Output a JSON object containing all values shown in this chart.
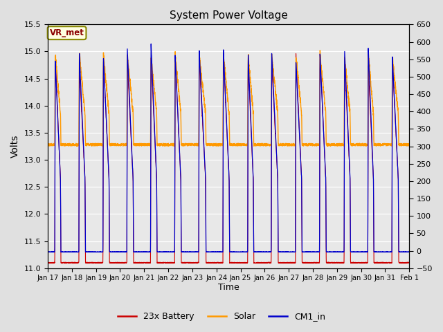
{
  "title": "System Power Voltage",
  "xlabel": "Time",
  "ylabel_left": "Volts",
  "ylim_left": [
    11.0,
    15.5
  ],
  "ylim_right": [
    -50,
    650
  ],
  "yticks_left": [
    11.0,
    11.5,
    12.0,
    12.5,
    13.0,
    13.5,
    14.0,
    14.5,
    15.0,
    15.5
  ],
  "yticks_right": [
    -50,
    0,
    50,
    100,
    150,
    200,
    250,
    300,
    350,
    400,
    450,
    500,
    550,
    600,
    650
  ],
  "xtick_labels": [
    "Jan 17",
    "Jan 18",
    "Jan 19",
    "Jan 20",
    "Jan 21",
    "Jan 22",
    "Jan 23",
    "Jan 24",
    "Jan 25",
    "Jan 26",
    "Jan 27",
    "Jan 28",
    "Jan 29",
    "Jan 30",
    "Jan 31",
    "Feb 1"
  ],
  "xtick_positions": [
    0,
    1,
    2,
    3,
    4,
    5,
    6,
    7,
    8,
    9,
    10,
    11,
    12,
    13,
    14,
    15
  ],
  "vr_met_label": "VR_met",
  "legend_entries": [
    "23x Battery",
    "Solar",
    "CM1_in"
  ],
  "legend_colors": [
    "#cc0000",
    "#ff9900",
    "#0000cc"
  ],
  "bg_color": "#e0e0e0",
  "plot_bg_color": "#e8e8e8",
  "num_days": 15,
  "n_points_per_day": 200
}
